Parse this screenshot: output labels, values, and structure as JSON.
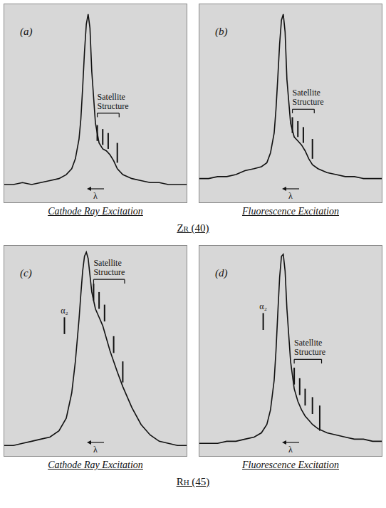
{
  "chart_data": [
    {
      "type": "line",
      "title": "(a)",
      "xlabel": "λ",
      "caption": "Cathode Ray Excitation",
      "color": "#111111",
      "xlim": [
        0,
        100
      ],
      "ylim": [
        0,
        100
      ],
      "tick_labels": false,
      "x": [
        0,
        5,
        10,
        15,
        20,
        25,
        30,
        34,
        37,
        39,
        41,
        42,
        43,
        44,
        45,
        46,
        47,
        48,
        50,
        52,
        54,
        56,
        58,
        60,
        62,
        65,
        70,
        75,
        80,
        85,
        90,
        95,
        100
      ],
      "values": [
        9,
        9,
        10,
        9,
        10,
        11,
        12,
        14,
        17,
        22,
        32,
        42,
        58,
        76,
        90,
        95,
        88,
        66,
        40,
        30,
        27,
        26,
        24,
        21,
        17,
        14,
        12,
        11,
        10,
        10,
        9,
        9,
        9
      ],
      "annotations": [
        {
          "text": "Satellite Structure",
          "x": [
            51,
            63
          ],
          "y": 45,
          "lines": [
            {
              "x": 51,
              "y": [
                31,
                39
              ]
            },
            {
              "x": 54,
              "y": [
                29,
                37
              ]
            },
            {
              "x": 57,
              "y": [
                27,
                35
              ]
            },
            {
              "x": 62,
              "y": [
                20,
                30
              ]
            }
          ]
        }
      ]
    },
    {
      "type": "line",
      "title": "(b)",
      "xlabel": "λ",
      "caption": "Fluorescence Excitation",
      "color": "#111111",
      "xlim": [
        0,
        100
      ],
      "ylim": [
        0,
        100
      ],
      "tick_labels": false,
      "x": [
        0,
        5,
        10,
        15,
        20,
        25,
        30,
        34,
        37,
        39,
        41,
        42,
        43,
        44,
        45,
        46,
        47,
        48,
        50,
        52,
        54,
        56,
        58,
        60,
        62,
        65,
        70,
        75,
        80,
        85,
        90,
        95,
        100
      ],
      "values": [
        12,
        12,
        13,
        13,
        14,
        16,
        17,
        18,
        20,
        25,
        35,
        47,
        63,
        80,
        92,
        95,
        86,
        62,
        40,
        33,
        31,
        29,
        26,
        22,
        19,
        17,
        15,
        14,
        13,
        13,
        12,
        12,
        12
      ],
      "annotations": [
        {
          "text": "Satellite Structure",
          "x": [
            51,
            63
          ],
          "y": 47,
          "lines": [
            {
              "x": 51,
              "y": [
                35,
                43
              ]
            },
            {
              "x": 54,
              "y": [
                33,
                41
              ]
            },
            {
              "x": 57,
              "y": [
                30,
                38
              ]
            },
            {
              "x": 62,
              "y": [
                22,
                32
              ]
            }
          ]
        }
      ]
    },
    {
      "type": "line",
      "title": "(c)",
      "xlabel": "λ",
      "caption": "Cathode Ray Excitation",
      "color": "#111111",
      "xlim": [
        0,
        100
      ],
      "ylim": [
        0,
        100
      ],
      "tick_labels": false,
      "x": [
        0,
        5,
        10,
        15,
        20,
        25,
        30,
        34,
        37,
        39,
        41,
        42,
        43,
        44,
        45,
        46,
        47,
        48,
        50,
        52,
        54,
        56,
        58,
        60,
        62,
        65,
        70,
        75,
        80,
        85,
        90,
        95,
        100
      ],
      "values": [
        5,
        5,
        6,
        7,
        8,
        9,
        12,
        18,
        30,
        45,
        65,
        77,
        88,
        95,
        97,
        94,
        86,
        78,
        70,
        66,
        62,
        56,
        50,
        45,
        40,
        33,
        23,
        15,
        10,
        7,
        6,
        5,
        5
      ],
      "annotations": [
        {
          "text": "α₂",
          "x": 33,
          "y": [
            58,
            66
          ]
        },
        {
          "text": "Satellite Structure",
          "x": [
            49,
            66
          ],
          "y": 84,
          "lines": [
            {
              "x": 49,
              "y": [
                74,
                82
              ]
            },
            {
              "x": 52,
              "y": [
                70,
                78
              ]
            },
            {
              "x": 55,
              "y": [
                64,
                72
              ]
            },
            {
              "x": 60,
              "y": [
                49,
                57
              ]
            },
            {
              "x": 65,
              "y": [
                35,
                45
              ]
            }
          ]
        }
      ]
    },
    {
      "type": "line",
      "title": "(d)",
      "xlabel": "λ",
      "caption": "Fluorescence Excitation",
      "color": "#111111",
      "xlim": [
        0,
        100
      ],
      "ylim": [
        0,
        100
      ],
      "tick_labels": false,
      "x": [
        0,
        5,
        10,
        15,
        20,
        25,
        30,
        34,
        37,
        39,
        41,
        42,
        43,
        44,
        45,
        46,
        47,
        48,
        50,
        52,
        54,
        56,
        58,
        60,
        62,
        65,
        70,
        75,
        80,
        85,
        90,
        95,
        100
      ],
      "values": [
        6,
        6,
        6,
        7,
        7,
        8,
        9,
        11,
        15,
        22,
        36,
        50,
        68,
        85,
        95,
        96,
        88,
        70,
        45,
        32,
        26,
        22,
        19,
        17,
        15,
        13,
        11,
        10,
        9,
        8,
        8,
        7,
        7
      ],
      "annotations": [
        {
          "text": "α₂",
          "x": 35,
          "y": [
            60,
            68
          ]
        },
        {
          "text": "Satellite Structure",
          "x": [
            52,
            67
          ],
          "y": 46,
          "lines": [
            {
              "x": 52,
              "y": [
                34,
                42
              ]
            },
            {
              "x": 55,
              "y": [
                29,
                37
              ]
            },
            {
              "x": 58,
              "y": [
                24,
                32
              ]
            },
            {
              "x": 62,
              "y": [
                20,
                28
              ]
            },
            {
              "x": 66,
              "y": [
                12,
                24
              ]
            }
          ]
        }
      ]
    }
  ],
  "row_labels": [
    "Zr (40)",
    "Rh (45)"
  ]
}
